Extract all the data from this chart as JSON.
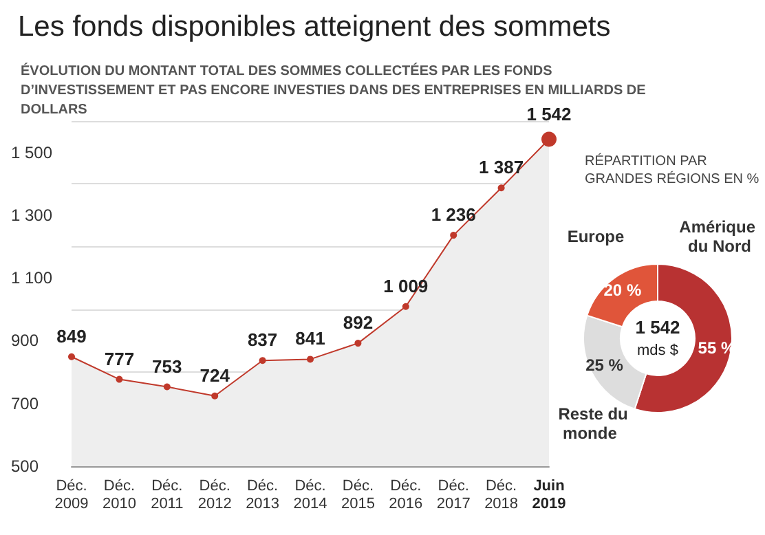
{
  "chart_data": [
    {
      "type": "area",
      "title": "Les fonds disponibles atteignent des sommets",
      "subtitle": "ÉVOLUTION DU MONTANT TOTAL DES SOMMES COLLECTÉES PAR LES FONDS D’INVESTISSEMENT ET PAS ENCORE INVESTIES DANS DES ENTREPRISES EN MILLIARDS DE DOLLARS",
      "categories": [
        "Déc. 2009",
        "Déc. 2010",
        "Déc. 2011",
        "Déc. 2012",
        "Déc. 2013",
        "Déc. 2014",
        "Déc. 2015",
        "Déc. 2016",
        "Déc. 2017",
        "Déc. 2018",
        "Juin 2019"
      ],
      "values": [
        849,
        777,
        753,
        724,
        837,
        841,
        892,
        1009,
        1236,
        1387,
        1542
      ],
      "value_labels": [
        "849",
        "777",
        "753",
        "724",
        "837",
        "841",
        "892",
        "1 009",
        "1 236",
        "1 387",
        "1 542"
      ],
      "color": "#c0392b",
      "ylim": [
        500,
        1600
      ],
      "yticks": [
        {
          "value": 500,
          "label": "500"
        },
        {
          "value": 700,
          "label": "700"
        },
        {
          "value": 900,
          "label": "900"
        },
        {
          "value": 1100,
          "label": "1 100"
        },
        {
          "value": 1300,
          "label": "1 300"
        },
        {
          "value": 1500,
          "label": "1 500"
        }
      ],
      "grid": "y",
      "legend": false,
      "marker": "circle"
    },
    {
      "type": "donut",
      "title": "RÉPARTITION PAR GRANDES RÉGIONS EN %",
      "categories": [
        "Amérique du Nord",
        "Reste du monde",
        "Europe"
      ],
      "values": [
        55,
        25,
        20
      ],
      "value_labels": [
        "55 %",
        "25 %",
        "20 %"
      ],
      "colors": [
        "#b83232",
        "#dddddd",
        "#e0553a"
      ],
      "annotations": [
        "1 542",
        "mds $"
      ],
      "legend": false
    }
  ]
}
